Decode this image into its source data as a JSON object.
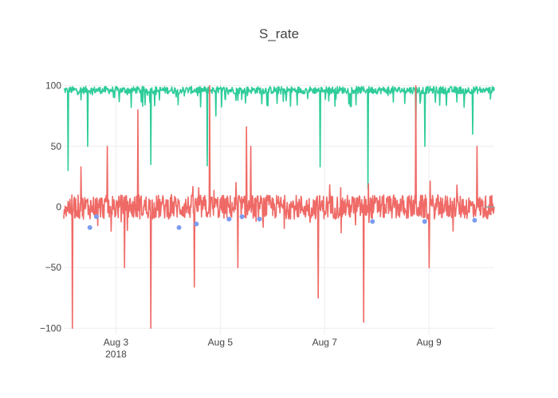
{
  "chart_data": {
    "type": "line",
    "title": "S_rate",
    "xlabel": "",
    "ylabel": "",
    "x_range": [
      "2018-08-02 00:00",
      "2018-08-10 06:00"
    ],
    "ylim": [
      -105,
      105
    ],
    "y_ticks": [
      100,
      50,
      0,
      -50,
      -100
    ],
    "y_tick_labels": [
      "100",
      "50",
      "0",
      "−50",
      "−100"
    ],
    "x_ticks": [
      "2018-08-03",
      "2018-08-05",
      "2018-08-07",
      "2018-08-09"
    ],
    "x_tick_labels": [
      "Aug 3",
      "Aug 5",
      "Aug 7",
      "Aug 9"
    ],
    "x_year_label": "2018",
    "grid": true,
    "legend": "none",
    "series": [
      {
        "type": "line",
        "color": "#2ecc9a",
        "baseline": 96,
        "noise": 6,
        "dips": [
          {
            "x": "2018-08-02 02:00",
            "y": 30
          },
          {
            "x": "2018-08-02 11:00",
            "y": 50
          },
          {
            "x": "2018-08-03 16:00",
            "y": 35
          },
          {
            "x": "2018-08-04 18:00",
            "y": 34
          },
          {
            "x": "2018-08-04 22:00",
            "y": 75
          },
          {
            "x": "2018-08-06 22:00",
            "y": 33
          },
          {
            "x": "2018-08-07 20:00",
            "y": 15
          },
          {
            "x": "2018-08-08 18:00",
            "y": 62
          },
          {
            "x": "2018-08-08 22:00",
            "y": 50
          },
          {
            "x": "2018-08-09 20:00",
            "y": 60
          }
        ]
      },
      {
        "type": "line",
        "color": "#ef6a66",
        "baseline": 0,
        "noise": 10,
        "spikes": [
          {
            "x": "2018-08-02 04:00",
            "y": -100
          },
          {
            "x": "2018-08-02 08:00",
            "y": 33
          },
          {
            "x": "2018-08-02 20:00",
            "y": 50
          },
          {
            "x": "2018-08-03 04:00",
            "y": -50
          },
          {
            "x": "2018-08-03 10:00",
            "y": 80
          },
          {
            "x": "2018-08-03 16:00",
            "y": -100
          },
          {
            "x": "2018-08-04 12:00",
            "y": -66
          },
          {
            "x": "2018-08-04 19:00",
            "y": 100
          },
          {
            "x": "2018-08-05 08:00",
            "y": -50
          },
          {
            "x": "2018-08-05 12:00",
            "y": 66
          },
          {
            "x": "2018-08-05 14:00",
            "y": 50
          },
          {
            "x": "2018-08-06 21:00",
            "y": -75
          },
          {
            "x": "2018-08-07 18:00",
            "y": -95
          },
          {
            "x": "2018-08-08 18:00",
            "y": 100
          },
          {
            "x": "2018-08-09 00:00",
            "y": -50
          },
          {
            "x": "2018-08-09 22:00",
            "y": 50
          }
        ]
      },
      {
        "type": "scatter",
        "color": "#7b9cf0",
        "points": [
          {
            "x": "2018-08-02 12:00",
            "y": -17
          },
          {
            "x": "2018-08-02 15:00",
            "y": -8
          },
          {
            "x": "2018-08-04 05:00",
            "y": -17
          },
          {
            "x": "2018-08-04 13:00",
            "y": -14
          },
          {
            "x": "2018-08-05 04:00",
            "y": -10
          },
          {
            "x": "2018-08-05 10:00",
            "y": -8
          },
          {
            "x": "2018-08-05 18:00",
            "y": -10
          },
          {
            "x": "2018-08-07 22:00",
            "y": -12
          },
          {
            "x": "2018-08-08 22:00",
            "y": -12
          },
          {
            "x": "2018-08-09 21:00",
            "y": -11
          }
        ]
      }
    ]
  }
}
